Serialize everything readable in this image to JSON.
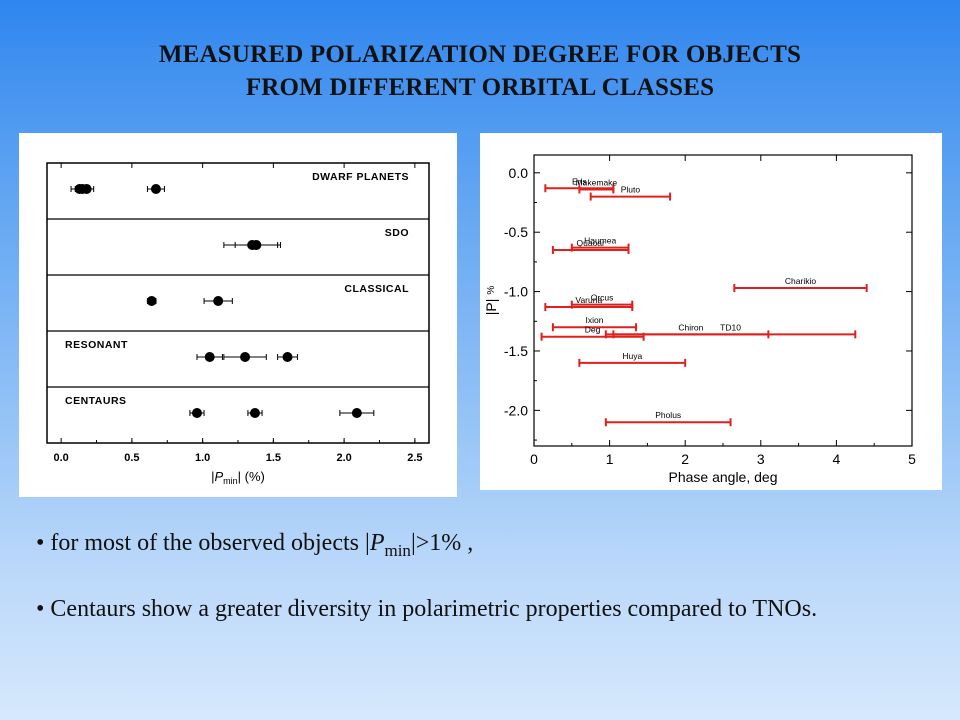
{
  "title": {
    "line1": "MEASURED POLARIZATION DEGREE FOR OBJECTS",
    "line2": "FROM DIFFERENT ORBITAL CLASSES"
  },
  "colors": {
    "marker": "#000000",
    "errorbar_red": "#e0201c",
    "grid": "#000000"
  },
  "chart_data": [
    {
      "type": "scatter",
      "title": "",
      "xlabel": "|P_min| (%)",
      "xlabel_parts": {
        "open": "|",
        "var": "P",
        "sub": "min",
        "close": "| (%)"
      },
      "ylabel": "",
      "xlim": [
        -0.1,
        2.6
      ],
      "xticks": [
        "0.0",
        "0.5",
        "1.0",
        "1.5",
        "2.0",
        "2.5"
      ],
      "xtick_values": [
        0.0,
        0.5,
        1.0,
        1.5,
        2.0,
        2.5
      ],
      "grid": false,
      "groups": [
        {
          "name": "DWARF PLANETS",
          "label_align": "right",
          "points": [
            {
              "x": 0.13,
              "err": 0.06
            },
            {
              "x": 0.15,
              "err": 0.05
            },
            {
              "x": 0.18,
              "err": 0.05
            },
            {
              "x": 0.67,
              "err": 0.06
            }
          ]
        },
        {
          "name": "SDO",
          "label_align": "right",
          "points": [
            {
              "x": 1.35,
              "err": 0.2
            },
            {
              "x": 1.38,
              "err": 0.15
            }
          ]
        },
        {
          "name": "CLASSICAL",
          "label_align": "right",
          "points": [
            {
              "x": 0.64,
              "err": 0.03
            },
            {
              "x": 1.11,
              "err": 0.1
            }
          ]
        },
        {
          "name": "RESONANT",
          "label_align": "left",
          "points": [
            {
              "x": 1.05,
              "err": 0.09
            },
            {
              "x": 1.3,
              "err": 0.15
            },
            {
              "x": 1.6,
              "err": 0.07
            }
          ]
        },
        {
          "name": "CENTAURS",
          "label_align": "left",
          "points": [
            {
              "x": 0.96,
              "err": 0.05
            },
            {
              "x": 1.37,
              "err": 0.05
            },
            {
              "x": 2.09,
              "err": 0.12
            }
          ]
        }
      ]
    },
    {
      "type": "scatter",
      "title": "",
      "xlabel": "Phase angle, deg",
      "ylabel": "|P|",
      "ylabel_unit": "%",
      "xlim": [
        0,
        5
      ],
      "ylim": [
        -2.3,
        0.15
      ],
      "xticks": [
        "0",
        "1",
        "2",
        "3",
        "4",
        "5"
      ],
      "xtick_values": [
        0,
        1,
        2,
        3,
        4,
        5
      ],
      "yticks": [
        "0.0",
        "-0.5",
        "-1.0",
        "-1.5",
        "-2.0"
      ],
      "ytick_values": [
        0.0,
        -0.5,
        -1.0,
        -1.5,
        -2.0
      ],
      "grid": false,
      "series": [
        {
          "name": "Eris",
          "y": -0.13,
          "xmin": 0.15,
          "xmax": 1.05
        },
        {
          "name": "Makemake",
          "y": -0.14,
          "xmin": 0.6,
          "xmax": 1.05
        },
        {
          "name": "Pluto",
          "y": -0.2,
          "xmin": 0.75,
          "xmax": 1.8
        },
        {
          "name": "Quaoar",
          "y": -0.65,
          "xmin": 0.25,
          "xmax": 1.25
        },
        {
          "name": "Haumea",
          "y": -0.63,
          "xmin": 0.5,
          "xmax": 1.25
        },
        {
          "name": "Charikio",
          "y": -0.97,
          "xmin": 2.65,
          "xmax": 4.4
        },
        {
          "name": "Varuna",
          "y": -1.13,
          "xmin": 0.15,
          "xmax": 1.3
        },
        {
          "name": "Orcus",
          "y": -1.11,
          "xmin": 0.5,
          "xmax": 1.3
        },
        {
          "name": "Ixion",
          "y": -1.3,
          "xmin": 0.25,
          "xmax": 1.35
        },
        {
          "name": "TD10",
          "y": -1.36,
          "xmin": 0.95,
          "xmax": 4.25
        },
        {
          "name": "Chiron",
          "y": -1.36,
          "xmin": 1.05,
          "xmax": 3.1
        },
        {
          "name": "Deg",
          "y": -1.38,
          "xmin": 0.1,
          "xmax": 1.45
        },
        {
          "name": "Huya",
          "y": -1.6,
          "xmin": 0.6,
          "xmax": 2.0
        },
        {
          "name": "Pholus",
          "y": -2.1,
          "xmin": 0.95,
          "xmax": 2.6
        }
      ]
    }
  ],
  "bullets": [
    {
      "pre": "for most of the observed objects |",
      "var": "P",
      "sub": "min",
      "post": "|>1% ,"
    },
    {
      "text": "Centaurs show a greater diversity in polarimetric properties compared to TNOs."
    }
  ]
}
